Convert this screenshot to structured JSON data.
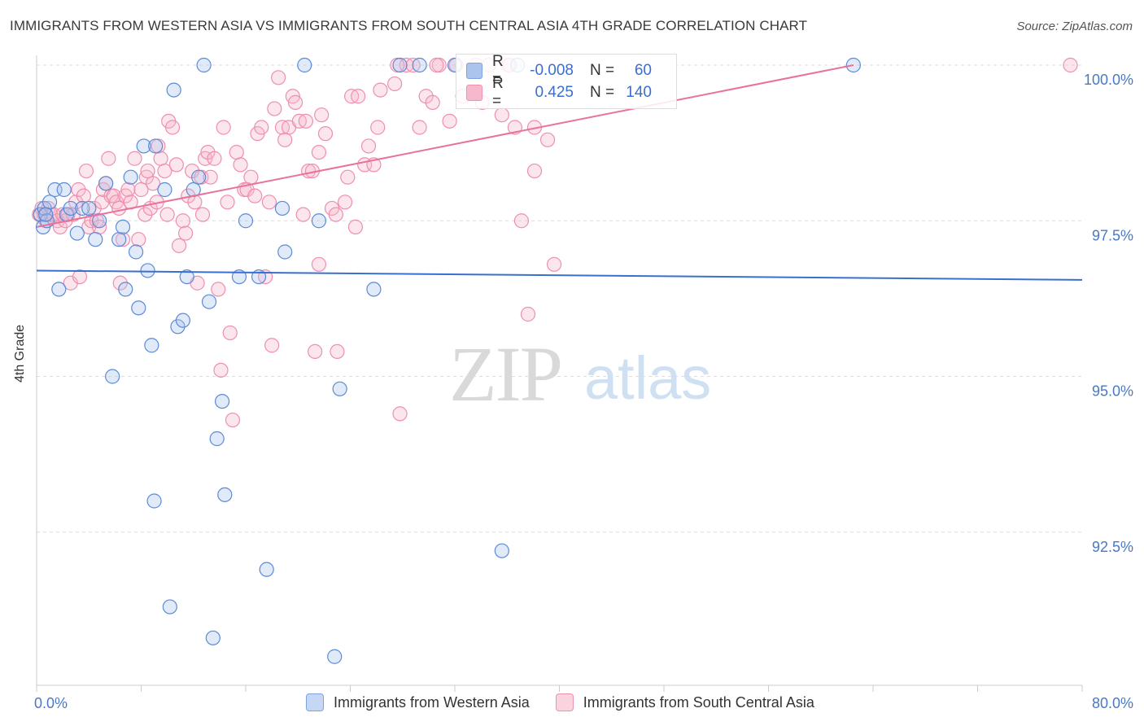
{
  "title": "IMMIGRANTS FROM WESTERN ASIA VS IMMIGRANTS FROM SOUTH CENTRAL ASIA 4TH GRADE CORRELATION CHART",
  "source": "Source: ZipAtlas.com",
  "watermark": {
    "zip": "ZIP",
    "atlas": "atlas"
  },
  "colors": {
    "blue": "#3a6fcf",
    "pink": "#e8729a",
    "blue_fill": "#aac4ee",
    "pink_fill": "#f6b8cc"
  },
  "legend_top": {
    "series": [
      {
        "r_label": "R =",
        "r_value": "-0.008",
        "n_label": "N =",
        "n_value": "60"
      },
      {
        "r_label": "R =",
        "r_value": "0.425",
        "n_label": "N =",
        "n_value": "140"
      }
    ]
  },
  "legend_bottom": [
    "Immigrants from Western Asia",
    "Immigrants from South Central Asia"
  ],
  "chart_data": {
    "type": "scatter",
    "title": "IMMIGRANTS FROM WESTERN ASIA VS IMMIGRANTS FROM SOUTH CENTRAL ASIA 4TH GRADE CORRELATION CHART",
    "xlabel": "",
    "ylabel": "4th Grade",
    "xlim": [
      0,
      80
    ],
    "ylim": [
      90.3,
      100.2
    ],
    "x_tick_labels": [
      "0.0%",
      "80.0%"
    ],
    "y_ticks": [
      92.5,
      95.0,
      97.5,
      100.0
    ],
    "y_tick_labels": [
      "92.5%",
      "95.0%",
      "97.5%",
      "100.0%"
    ],
    "series": [
      {
        "name": "Immigrants from Western Asia",
        "color": "blue",
        "trend": {
          "x": [
            0,
            80
          ],
          "y": [
            96.7,
            96.55
          ]
        },
        "points": [
          [
            0.3,
            97.6
          ],
          [
            0.5,
            97.4
          ],
          [
            0.6,
            97.7
          ],
          [
            0.8,
            97.5
          ],
          [
            1,
            97.8
          ],
          [
            1.4,
            98.0
          ],
          [
            1.7,
            96.4
          ],
          [
            2.1,
            98.0
          ],
          [
            2.3,
            97.6
          ],
          [
            2.6,
            97.7
          ],
          [
            3.1,
            97.3
          ],
          [
            3.5,
            97.7
          ],
          [
            4,
            97.7
          ],
          [
            4.5,
            97.2
          ],
          [
            4.8,
            97.5
          ],
          [
            5.3,
            98.1
          ],
          [
            5.8,
            95.0
          ],
          [
            6.3,
            97.2
          ],
          [
            6.6,
            97.4
          ],
          [
            6.8,
            96.4
          ],
          [
            7.2,
            98.2
          ],
          [
            7.6,
            97.0
          ],
          [
            7.8,
            96.1
          ],
          [
            8.2,
            98.7
          ],
          [
            8.5,
            96.7
          ],
          [
            8.8,
            95.5
          ],
          [
            9.1,
            98.7
          ],
          [
            9,
            93.0
          ],
          [
            9.8,
            98.0
          ],
          [
            10.2,
            91.3
          ],
          [
            10.5,
            99.6
          ],
          [
            10.8,
            95.8
          ],
          [
            11.2,
            95.9
          ],
          [
            11.5,
            96.6
          ],
          [
            12,
            98.0
          ],
          [
            12.4,
            98.2
          ],
          [
            12.8,
            100.0
          ],
          [
            13.2,
            96.2
          ],
          [
            13.5,
            90.8
          ],
          [
            13.8,
            94.0
          ],
          [
            14.2,
            94.6
          ],
          [
            14.4,
            93.1
          ],
          [
            15.5,
            96.6
          ],
          [
            16,
            97.5
          ],
          [
            17,
            96.6
          ],
          [
            17.6,
            91.9
          ],
          [
            18.8,
            97.7
          ],
          [
            19,
            97.0
          ],
          [
            20.5,
            100.0
          ],
          [
            21.6,
            97.5
          ],
          [
            22.8,
            90.5
          ],
          [
            23.2,
            94.8
          ],
          [
            25.8,
            96.4
          ],
          [
            27.8,
            100.0
          ],
          [
            29.3,
            100.0
          ],
          [
            32,
            100.0
          ],
          [
            35.6,
            92.2
          ],
          [
            36.8,
            100.0
          ],
          [
            62.5,
            100.0
          ],
          [
            0.7,
            97.6
          ]
        ]
      },
      {
        "name": "Immigrants from South Central Asia",
        "color": "pink",
        "trend": {
          "x": [
            0,
            62.5
          ],
          "y": [
            97.4,
            100.0
          ]
        },
        "points": [
          [
            0.2,
            97.6
          ],
          [
            0.4,
            97.7
          ],
          [
            0.6,
            97.6
          ],
          [
            0.7,
            97.5
          ],
          [
            0.9,
            97.7
          ],
          [
            1.1,
            97.6
          ],
          [
            1.3,
            97.6
          ],
          [
            1.6,
            97.5
          ],
          [
            1.8,
            97.4
          ],
          [
            2,
            97.6
          ],
          [
            2.2,
            97.5
          ],
          [
            2.4,
            97.6
          ],
          [
            2.6,
            96.5
          ],
          [
            2.8,
            97.6
          ],
          [
            3,
            97.8
          ],
          [
            3.2,
            98.0
          ],
          [
            3.3,
            96.6
          ],
          [
            3.6,
            97.9
          ],
          [
            3.8,
            98.3
          ],
          [
            4,
            97.4
          ],
          [
            4.2,
            97.5
          ],
          [
            4.4,
            97.7
          ],
          [
            4.6,
            97.5
          ],
          [
            4.8,
            97.4
          ],
          [
            5,
            97.8
          ],
          [
            5.1,
            98.0
          ],
          [
            5.3,
            98.1
          ],
          [
            5.5,
            98.5
          ],
          [
            5.7,
            97.9
          ],
          [
            5.9,
            97.9
          ],
          [
            6.1,
            97.8
          ],
          [
            6.3,
            97.7
          ],
          [
            6.4,
            96.5
          ],
          [
            6.6,
            97.2
          ],
          [
            6.8,
            97.9
          ],
          [
            7,
            98.0
          ],
          [
            7.2,
            97.8
          ],
          [
            7.5,
            98.5
          ],
          [
            7.8,
            97.2
          ],
          [
            8,
            98.0
          ],
          [
            8.3,
            97.6
          ],
          [
            8.4,
            98.2
          ],
          [
            8.5,
            98.3
          ],
          [
            8.7,
            97.7
          ],
          [
            8.9,
            98.1
          ],
          [
            9.2,
            97.8
          ],
          [
            9.5,
            98.5
          ],
          [
            9.8,
            98.3
          ],
          [
            10,
            97.6
          ],
          [
            10.1,
            99.1
          ],
          [
            10.4,
            99.0
          ],
          [
            10.7,
            98.4
          ],
          [
            10.9,
            97.1
          ],
          [
            11.2,
            97.5
          ],
          [
            11.4,
            97.3
          ],
          [
            11.6,
            97.9
          ],
          [
            11.9,
            98.3
          ],
          [
            12.1,
            97.8
          ],
          [
            12.3,
            96.5
          ],
          [
            12.6,
            98.2
          ],
          [
            12.9,
            98.5
          ],
          [
            13.1,
            98.6
          ],
          [
            13.3,
            98.2
          ],
          [
            13.6,
            98.5
          ],
          [
            13.9,
            96.4
          ],
          [
            14.1,
            95.1
          ],
          [
            14.3,
            99.0
          ],
          [
            14.6,
            97.8
          ],
          [
            14.8,
            95.7
          ],
          [
            15,
            94.3
          ],
          [
            15.3,
            98.6
          ],
          [
            15.6,
            98.4
          ],
          [
            15.9,
            98.0
          ],
          [
            16.1,
            98.0
          ],
          [
            16.4,
            98.2
          ],
          [
            16.7,
            97.9
          ],
          [
            16.9,
            98.9
          ],
          [
            17.2,
            99.0
          ],
          [
            17.5,
            96.6
          ],
          [
            17.8,
            97.8
          ],
          [
            18,
            95.5
          ],
          [
            18.2,
            99.3
          ],
          [
            18.5,
            99.8
          ],
          [
            18.8,
            99.0
          ],
          [
            19,
            98.8
          ],
          [
            19.3,
            99.0
          ],
          [
            19.6,
            99.5
          ],
          [
            19.8,
            99.4
          ],
          [
            20.1,
            99.1
          ],
          [
            20.4,
            97.6
          ],
          [
            20.6,
            99.1
          ],
          [
            20.8,
            98.3
          ],
          [
            21.1,
            98.3
          ],
          [
            21.3,
            95.4
          ],
          [
            21.6,
            98.6
          ],
          [
            21.8,
            99.2
          ],
          [
            22.1,
            98.9
          ],
          [
            22.6,
            97.7
          ],
          [
            22.9,
            97.6
          ],
          [
            23,
            95.4
          ],
          [
            23.6,
            97.8
          ],
          [
            23.8,
            98.2
          ],
          [
            24.1,
            99.5
          ],
          [
            24.4,
            97.4
          ],
          [
            24.6,
            99.5
          ],
          [
            25.1,
            98.4
          ],
          [
            25.4,
            98.7
          ],
          [
            25.8,
            98.4
          ],
          [
            26.1,
            99.0
          ],
          [
            26.3,
            99.6
          ],
          [
            27.4,
            99.7
          ],
          [
            27.8,
            94.4
          ],
          [
            28.3,
            100.0
          ],
          [
            28.8,
            100.0
          ],
          [
            29.3,
            99.0
          ],
          [
            29.8,
            99.5
          ],
          [
            30.3,
            99.4
          ],
          [
            30.8,
            100.0
          ],
          [
            31.6,
            99.1
          ],
          [
            32.6,
            99.5
          ],
          [
            33.6,
            100.0
          ],
          [
            34.1,
            99.4
          ],
          [
            34.6,
            100.0
          ],
          [
            35.6,
            99.2
          ],
          [
            36.1,
            100.0
          ],
          [
            36.6,
            99.0
          ],
          [
            37.1,
            97.5
          ],
          [
            37.6,
            96.0
          ],
          [
            38.1,
            99.0
          ],
          [
            39.1,
            98.8
          ],
          [
            39.6,
            96.8
          ],
          [
            27.6,
            100.0
          ],
          [
            30.6,
            100.0
          ],
          [
            32.1,
            100.0
          ],
          [
            36.2,
            100.0
          ],
          [
            38.1,
            98.3
          ],
          [
            9.3,
            98.7
          ],
          [
            12.7,
            97.6
          ],
          [
            21.6,
            96.8
          ],
          [
            79.1,
            100.0
          ]
        ]
      }
    ]
  }
}
